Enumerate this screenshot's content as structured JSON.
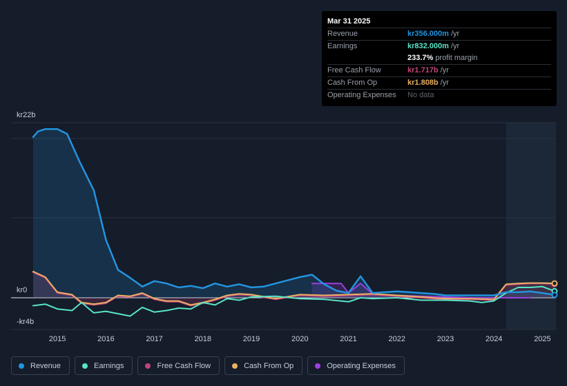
{
  "chart_data": {
    "type": "line",
    "title": "",
    "y_unit_labels": {
      "top": "kr22b",
      "zero": "kr0",
      "bottom": "-kr4b"
    },
    "ylim": [
      -4,
      22
    ],
    "xlim": [
      2014.5,
      2025.25
    ],
    "forecast_from": 2024.25,
    "x_ticks": [
      "2015",
      "2016",
      "2017",
      "2018",
      "2019",
      "2020",
      "2021",
      "2022",
      "2023",
      "2024",
      "2025"
    ],
    "series": [
      {
        "name": "Revenue",
        "color": "#2394df",
        "fill": true,
        "x": [
          2014.5,
          2014.6,
          2014.75,
          2015.0,
          2015.2,
          2015.45,
          2015.75,
          2016.0,
          2016.25,
          2016.5,
          2016.75,
          2017.0,
          2017.25,
          2017.5,
          2017.75,
          2018.0,
          2018.25,
          2018.5,
          2018.75,
          2019.0,
          2019.25,
          2019.5,
          2019.75,
          2020.0,
          2020.25,
          2020.5,
          2020.75,
          2021.0,
          2021.25,
          2021.5,
          2021.75,
          2022.0,
          2022.25,
          2022.5,
          2022.75,
          2023.0,
          2023.25,
          2023.5,
          2023.75,
          2024.0,
          2024.25,
          2024.5,
          2024.75,
          2025.0,
          2025.25
        ],
        "values": [
          20.2,
          20.9,
          21.2,
          21.2,
          20.6,
          17.2,
          13.5,
          7.3,
          3.5,
          2.5,
          1.4,
          2.1,
          1.8,
          1.3,
          1.5,
          1.2,
          1.8,
          1.4,
          1.7,
          1.3,
          1.4,
          1.8,
          2.2,
          2.6,
          2.9,
          1.7,
          0.9,
          0.6,
          2.7,
          0.6,
          0.7,
          0.8,
          0.7,
          0.6,
          0.5,
          0.3,
          0.3,
          0.3,
          0.3,
          0.3,
          0.7,
          0.7,
          0.8,
          0.6,
          0.36
        ]
      },
      {
        "name": "Earnings",
        "color": "#58e6c8",
        "fill": false,
        "x": [
          2014.5,
          2014.75,
          2015.0,
          2015.3,
          2015.5,
          2015.75,
          2016.0,
          2016.25,
          2016.5,
          2016.75,
          2017.0,
          2017.25,
          2017.5,
          2017.75,
          2018.0,
          2018.25,
          2018.5,
          2018.75,
          2019.0,
          2019.5,
          2020.0,
          2020.5,
          2021.0,
          2021.25,
          2021.5,
          2022.0,
          2022.5,
          2023.0,
          2023.5,
          2023.75,
          2024.0,
          2024.25,
          2024.5,
          2024.75,
          2025.0,
          2025.25
        ],
        "values": [
          -1.0,
          -0.8,
          -1.4,
          -1.6,
          -0.6,
          -1.9,
          -1.7,
          -2.0,
          -2.3,
          -1.2,
          -1.8,
          -1.6,
          -1.3,
          -1.4,
          -0.6,
          -0.9,
          -0.1,
          -0.3,
          0.1,
          0.2,
          -0.1,
          -0.2,
          -0.5,
          0.0,
          -0.1,
          0.0,
          -0.3,
          -0.3,
          -0.4,
          -0.6,
          -0.4,
          0.6,
          1.3,
          1.3,
          1.4,
          0.83
        ]
      },
      {
        "name": "Free Cash Flow",
        "color": "#c2447c",
        "fill": true,
        "x": [
          2014.5,
          2014.75,
          2015.0,
          2015.3,
          2015.5,
          2015.75,
          2016.0,
          2016.25,
          2016.5,
          2016.75,
          2017.0,
          2017.25,
          2017.5,
          2017.75,
          2018.0,
          2018.25,
          2018.5,
          2018.75,
          2019.0,
          2019.5,
          2020.0,
          2020.5,
          2021.0,
          2021.5,
          2022.0,
          2022.5,
          2023.0,
          2023.5,
          2024.0,
          2024.25,
          2024.5,
          2024.75,
          2025.0,
          2025.25
        ],
        "values": [
          3.2,
          2.5,
          0.6,
          0.3,
          -0.7,
          -0.9,
          -0.7,
          0.2,
          0.1,
          0.5,
          -0.2,
          -0.5,
          -0.5,
          -1.0,
          -0.7,
          -0.3,
          0.2,
          0.4,
          0.3,
          -0.2,
          0.3,
          0.2,
          0.3,
          0.4,
          0.2,
          0.0,
          -0.2,
          -0.2,
          -0.3,
          1.6,
          1.7,
          1.8,
          1.8,
          1.72
        ]
      },
      {
        "name": "Cash From Op",
        "color": "#e9b064",
        "fill": false,
        "x": [
          2014.5,
          2014.75,
          2015.0,
          2015.3,
          2015.5,
          2015.75,
          2016.0,
          2016.25,
          2016.5,
          2016.75,
          2017.0,
          2017.25,
          2017.5,
          2017.75,
          2018.0,
          2018.25,
          2018.5,
          2018.75,
          2019.0,
          2019.5,
          2020.0,
          2020.5,
          2021.0,
          2021.5,
          2022.0,
          2022.5,
          2023.0,
          2023.5,
          2024.0,
          2024.25,
          2024.5,
          2024.75,
          2025.0,
          2025.25
        ],
        "values": [
          3.3,
          2.6,
          0.7,
          0.4,
          -0.6,
          -0.8,
          -0.6,
          0.3,
          0.2,
          0.6,
          -0.1,
          -0.4,
          -0.4,
          -0.9,
          -0.6,
          -0.2,
          0.3,
          0.5,
          0.4,
          -0.1,
          0.4,
          0.3,
          0.4,
          0.5,
          0.3,
          0.1,
          -0.1,
          -0.1,
          -0.2,
          1.7,
          1.8,
          1.85,
          1.85,
          1.81
        ]
      },
      {
        "name": "Operating Expenses",
        "color": "#9d3fe0",
        "fill": true,
        "x": [
          2020.25,
          2020.5,
          2020.85,
          2021.0,
          2021.25,
          2021.5,
          2021.75,
          2022.0,
          2022.5,
          2023.0,
          2023.5,
          2024.0,
          2024.5,
          2024.75
        ],
        "values": [
          1.8,
          1.8,
          1.8,
          0.6,
          1.8,
          0.5,
          0.4,
          0.3,
          0.2,
          0.1,
          0.0,
          0.0,
          0.0,
          0.0
        ]
      }
    ]
  },
  "tooltip": {
    "date": "Mar 31 2025",
    "rows": [
      {
        "label": "Revenue",
        "value": "kr356.000m",
        "unit": "/yr",
        "color": "#2394df"
      },
      {
        "label": "Earnings",
        "value": "kr832.000m",
        "unit": "/yr",
        "color": "#58e6c8"
      },
      {
        "label": "",
        "value": "233.7%",
        "unit": "profit margin",
        "color": "#ffffff"
      },
      {
        "label": "Free Cash Flow",
        "value": "kr1.717b",
        "unit": "/yr",
        "color": "#c2447c"
      },
      {
        "label": "Cash From Op",
        "value": "kr1.808b",
        "unit": "/yr",
        "color": "#e9b064"
      },
      {
        "label": "Operating Expenses",
        "value": "",
        "unit": "No data",
        "color": "#5f656e"
      }
    ]
  },
  "legend": [
    {
      "label": "Revenue",
      "color": "#2394df"
    },
    {
      "label": "Earnings",
      "color": "#58e6c8"
    },
    {
      "label": "Free Cash Flow",
      "color": "#c2447c"
    },
    {
      "label": "Cash From Op",
      "color": "#e9b064"
    },
    {
      "label": "Operating Expenses",
      "color": "#9d3fe0"
    }
  ]
}
